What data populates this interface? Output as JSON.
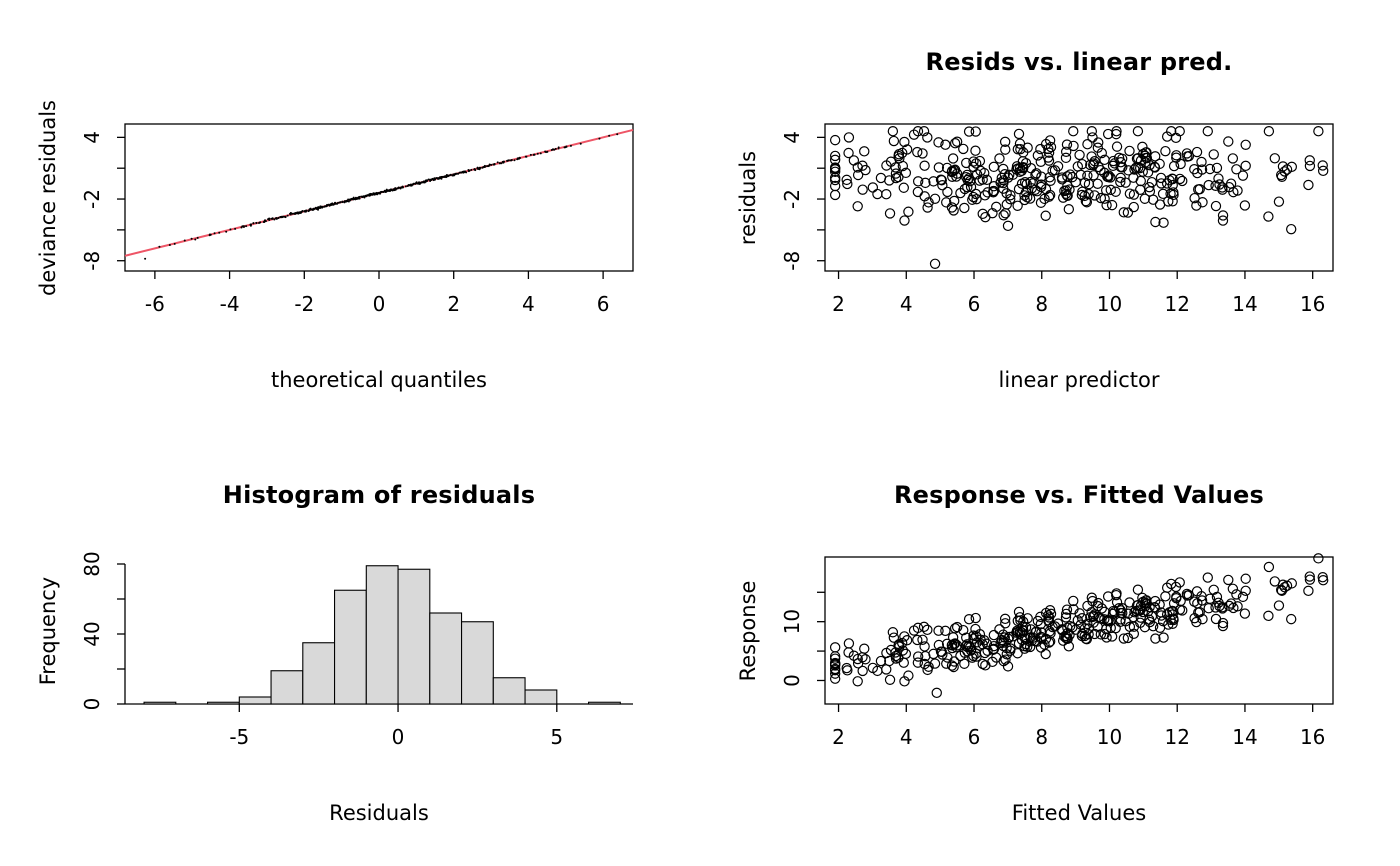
{
  "page": {
    "background": "#ffffff",
    "point_color": "#000000"
  },
  "chart_data": [
    {
      "id": "qq-plot",
      "type": "scatter",
      "frame": "box",
      "title": "",
      "xlabel": "theoretical quantiles",
      "ylabel": "deviance residuals",
      "xlim": [
        -6.8,
        6.8
      ],
      "ylim": [
        -9,
        5.3
      ],
      "x_ticks": [
        [
          -6,
          "-6"
        ],
        [
          -4,
          "-4"
        ],
        [
          -2,
          "-2"
        ],
        [
          0,
          "0"
        ],
        [
          2,
          "2"
        ],
        [
          4,
          "4"
        ],
        [
          6,
          "6"
        ]
      ],
      "y_ticks": [
        [
          -8,
          "-8"
        ],
        [
          -5,
          ""
        ],
        [
          -2,
          "-2"
        ],
        [
          1,
          ""
        ],
        [
          4,
          "4"
        ]
      ],
      "ref_line": {
        "slope": 0.9,
        "intercept": -1.4,
        "color": "#ee5566"
      },
      "point_style": "dot",
      "generator": {
        "kind": "qq",
        "n": 480,
        "seed": 11,
        "sd": 2.2,
        "x_clip": [
          -6.4,
          6.4
        ],
        "jitter": 0.05
      }
    },
    {
      "id": "resids-vs-linear-pred",
      "type": "scatter",
      "frame": "box",
      "title": "Resids vs. linear pred.",
      "xlabel": "linear predictor",
      "ylabel": "residuals",
      "xlim": [
        1.6,
        16.6
      ],
      "ylim": [
        -9,
        5.3
      ],
      "x_ticks": [
        [
          2,
          "2"
        ],
        [
          4,
          "4"
        ],
        [
          6,
          "6"
        ],
        [
          8,
          "8"
        ],
        [
          10,
          "10"
        ],
        [
          12,
          "12"
        ],
        [
          14,
          "14"
        ],
        [
          16,
          "16"
        ]
      ],
      "y_ticks": [
        [
          -8,
          "-8"
        ],
        [
          -5,
          ""
        ],
        [
          -2,
          "-2"
        ],
        [
          1,
          ""
        ],
        [
          4,
          "4"
        ]
      ],
      "point_style": "circle",
      "generator": {
        "kind": "resid",
        "n": 400,
        "seed": 11,
        "x_mean": 8.4,
        "x_sd": 3.0,
        "uniform_frac": 0.12,
        "x_range": [
          1.9,
          16.4
        ],
        "resid_mean": 0.3,
        "resid_sd": 2.0,
        "resid_range": [
          -5.9,
          4.6
        ]
      },
      "outliers": [
        [
          4.85,
          -8.3
        ]
      ]
    },
    {
      "id": "histogram-of-residuals",
      "type": "bar",
      "frame": "axes",
      "title": "Histogram of residuals",
      "xlabel": "Residuals",
      "ylabel": "Frequency",
      "xlim": [
        -8.6,
        7.4
      ],
      "ylim": [
        0,
        84
      ],
      "x_ticks": [
        [
          -5,
          "-5"
        ],
        [
          0,
          "0"
        ],
        [
          5,
          "5"
        ]
      ],
      "y_ticks": [
        [
          0,
          "0"
        ],
        [
          20,
          ""
        ],
        [
          40,
          "40"
        ],
        [
          60,
          ""
        ],
        [
          80,
          "80"
        ]
      ],
      "bin_start": -8,
      "bin_width": 1,
      "counts": [
        1,
        0,
        1,
        4,
        19,
        35,
        65,
        79,
        77,
        52,
        47,
        15,
        8,
        0,
        1
      ],
      "bar_fill": "#d9d9d9"
    },
    {
      "id": "response-vs-fitted",
      "type": "scatter",
      "frame": "box",
      "title": "Response vs. Fitted Values",
      "xlabel": "Fitted Values",
      "ylabel": "Response",
      "xlim": [
        1.6,
        16.6
      ],
      "ylim": [
        -4,
        21
      ],
      "x_ticks": [
        [
          2,
          "2"
        ],
        [
          4,
          "4"
        ],
        [
          6,
          "6"
        ],
        [
          8,
          "8"
        ],
        [
          10,
          "10"
        ],
        [
          12,
          "12"
        ],
        [
          14,
          "14"
        ],
        [
          16,
          "16"
        ]
      ],
      "y_ticks": [
        [
          0,
          "0"
        ],
        [
          5,
          ""
        ],
        [
          10,
          "10"
        ],
        [
          15,
          ""
        ]
      ],
      "point_style": "circle",
      "generator": {
        "kind": "response",
        "n": 400,
        "seed": 11,
        "x_mean": 8.4,
        "x_sd": 3.0,
        "uniform_frac": 0.12,
        "x_range": [
          1.9,
          16.4
        ],
        "resid_mean": 0.3,
        "resid_sd": 2.0,
        "resid_range": [
          -5.9,
          4.6
        ]
      },
      "outliers": [
        [
          4.9,
          -2.1
        ]
      ]
    }
  ]
}
